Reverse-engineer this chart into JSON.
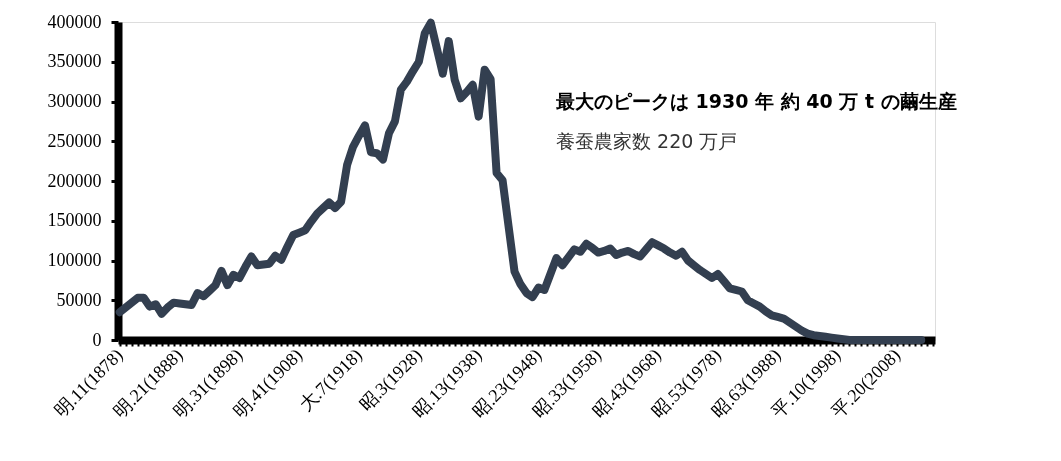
{
  "chart_data": {
    "type": "line",
    "categories": [
      "明.11(1878)",
      null,
      null,
      null,
      null,
      null,
      null,
      null,
      null,
      null,
      "明.21(1888)",
      null,
      null,
      null,
      null,
      null,
      null,
      null,
      null,
      null,
      "明.31(1898)",
      null,
      null,
      null,
      null,
      null,
      null,
      null,
      null,
      null,
      "明.41(1908)",
      null,
      null,
      null,
      null,
      null,
      null,
      null,
      null,
      null,
      "大.7(1918)",
      null,
      null,
      null,
      null,
      null,
      null,
      null,
      null,
      null,
      "昭.3(1928)",
      null,
      null,
      null,
      null,
      null,
      null,
      null,
      null,
      null,
      "昭.13(1938)",
      null,
      null,
      null,
      null,
      null,
      null,
      null,
      null,
      null,
      "昭.23(1948)",
      null,
      null,
      null,
      null,
      null,
      null,
      null,
      null,
      null,
      "昭.33(1958)",
      null,
      null,
      null,
      null,
      null,
      null,
      null,
      null,
      null,
      "昭.43(1968)",
      null,
      null,
      null,
      null,
      null,
      null,
      null,
      null,
      null,
      "昭.53(1978)",
      null,
      null,
      null,
      null,
      null,
      null,
      null,
      null,
      null,
      "昭.63(1988)",
      null,
      null,
      null,
      null,
      null,
      null,
      null,
      null,
      null,
      "平.10(1998)",
      null,
      null,
      null,
      null,
      null,
      null,
      null,
      null,
      null,
      "平.20(2008)",
      null,
      null,
      null,
      null,
      null,
      null
    ],
    "series": [
      {
        "color": "#333f50",
        "values": [
          35000,
          41000,
          47000,
          53000,
          53000,
          42000,
          45000,
          33000,
          41000,
          47000,
          46000,
          45000,
          44000,
          59000,
          55000,
          62000,
          69000,
          87000,
          69000,
          82000,
          78000,
          92000,
          105000,
          94000,
          95000,
          96000,
          106000,
          101000,
          117000,
          132000,
          135000,
          138000,
          149000,
          159000,
          166000,
          173000,
          166000,
          174000,
          220000,
          243000,
          257000,
          270000,
          236000,
          235000,
          227000,
          260000,
          275000,
          315000,
          325000,
          338000,
          350000,
          386000,
          399000,
          367000,
          335000,
          376000,
          327000,
          304000,
          312000,
          321000,
          281000,
          340000,
          328000,
          210000,
          201000,
          143000,
          86000,
          70000,
          59000,
          54000,
          66000,
          63000,
          83000,
          103000,
          94000,
          104000,
          114000,
          111000,
          121000,
          116000,
          110000,
          112000,
          115000,
          107000,
          110000,
          112000,
          108000,
          105000,
          114000,
          123000,
          119000,
          115000,
          110000,
          106000,
          111000,
          100000,
          94000,
          88000,
          83000,
          78000,
          83000,
          74000,
          65000,
          63000,
          61000,
          50000,
          46000,
          42000,
          36000,
          31000,
          29000,
          27000,
          22000,
          17000,
          12000,
          8000,
          6000,
          5000,
          4000,
          3000,
          2000,
          1000,
          0,
          0,
          0,
          0,
          0,
          0,
          0,
          0,
          0,
          0,
          0,
          0,
          0,
          null,
          null
        ]
      }
    ],
    "ylim": [
      0,
      400000
    ],
    "yticks": [
      0,
      50000,
      100000,
      150000,
      200000,
      250000,
      300000,
      350000,
      400000
    ],
    "annotations": [
      "最大のピークは 1930 年 約 40 万 t の繭生産",
      "養蚕農家数 220 万戸"
    ],
    "grid": false,
    "marker": "none",
    "line_style": "solid"
  }
}
